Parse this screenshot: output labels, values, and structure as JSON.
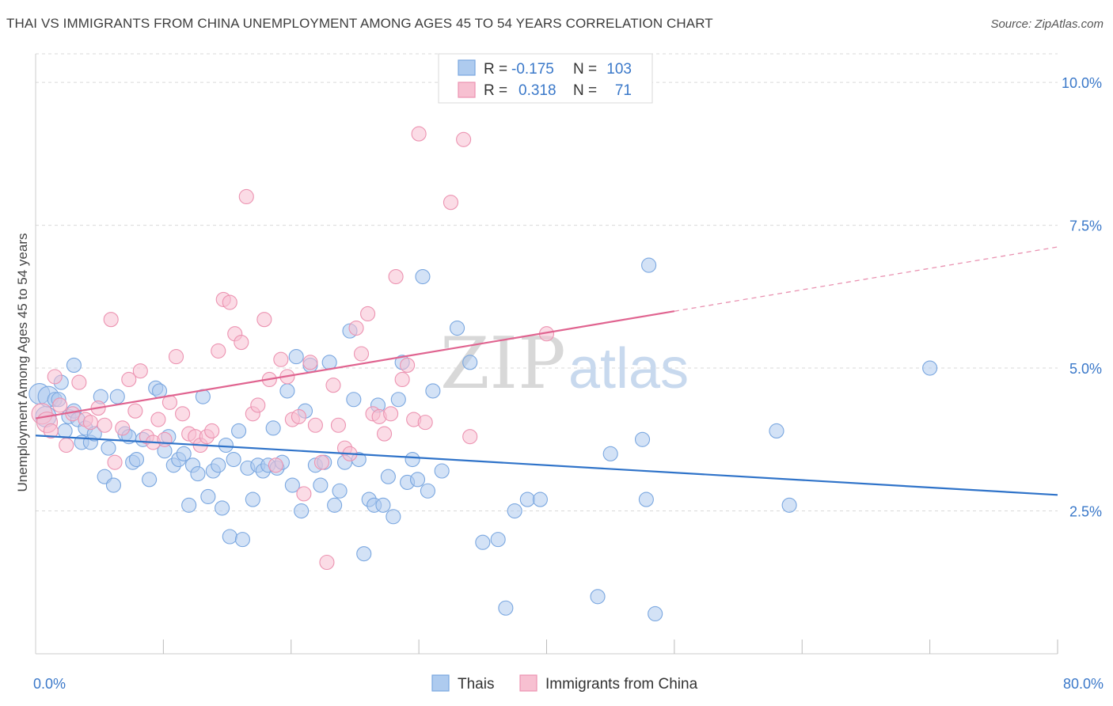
{
  "header": {
    "title": "THAI VS IMMIGRANTS FROM CHINA UNEMPLOYMENT AMONG AGES 45 TO 54 YEARS CORRELATION CHART",
    "source": "Source: ZipAtlas.com"
  },
  "watermark": {
    "zip": "ZIP",
    "atlas": "atlas"
  },
  "stats_legend": {
    "rows": [
      {
        "r_label": "R =",
        "r_value": "-0.175",
        "n_label": "N =",
        "n_value": "103",
        "color": "#7aaae8"
      },
      {
        "r_label": "R =",
        "r_value": "0.318",
        "n_label": "N =",
        "n_value": "71",
        "color": "#f09ab8"
      }
    ]
  },
  "colors": {
    "thais_fill": "#aecbef",
    "thais_stroke": "#7aa7e0",
    "thais_line": "#2f73c9",
    "china_fill": "#f7c0d1",
    "china_stroke": "#ec93b1",
    "china_line": "#e06490",
    "axis_label": "#3a78c9",
    "grid": "#d9d9d9"
  },
  "chart_data": {
    "type": "scatter",
    "title": "THAI VS IMMIGRANTS FROM CHINA UNEMPLOYMENT AMONG AGES 45 TO 54 YEARS CORRELATION CHART",
    "xlabel": "",
    "ylabel": "Unemployment Among Ages 45 to 54 years",
    "xlim": [
      0,
      80
    ],
    "ylim": [
      0,
      10.5
    ],
    "x_tick_labels": [
      "0.0%",
      "80.0%"
    ],
    "y_ticks": [
      2.5,
      5.0,
      7.5,
      10.0
    ],
    "y_tick_labels": [
      "2.5%",
      "5.0%",
      "7.5%",
      "10.0%"
    ],
    "grid": true,
    "legend_position": "bottom",
    "series": [
      {
        "name": "Thais",
        "trend": {
          "x": [
            0,
            80
          ],
          "y": [
            3.82,
            2.78
          ],
          "solid_until": 80
        },
        "points": [
          [
            0.3,
            4.55
          ],
          [
            0.8,
            4.15
          ],
          [
            1.0,
            4.5
          ],
          [
            1.5,
            4.45
          ],
          [
            1.8,
            4.45
          ],
          [
            2.0,
            4.75
          ],
          [
            2.3,
            3.9
          ],
          [
            2.6,
            4.15
          ],
          [
            3.0,
            4.25
          ],
          [
            3.0,
            5.05
          ],
          [
            3.3,
            4.1
          ],
          [
            3.6,
            3.7
          ],
          [
            3.9,
            3.95
          ],
          [
            4.3,
            3.7
          ],
          [
            4.6,
            3.85
          ],
          [
            5.1,
            4.5
          ],
          [
            5.4,
            3.1
          ],
          [
            5.7,
            3.6
          ],
          [
            6.1,
            2.95
          ],
          [
            6.4,
            4.5
          ],
          [
            7.0,
            3.85
          ],
          [
            7.3,
            3.8
          ],
          [
            7.6,
            3.35
          ],
          [
            7.9,
            3.4
          ],
          [
            8.4,
            3.75
          ],
          [
            8.9,
            3.05
          ],
          [
            9.4,
            4.65
          ],
          [
            9.7,
            4.6
          ],
          [
            10.1,
            3.55
          ],
          [
            10.4,
            3.8
          ],
          [
            10.8,
            3.3
          ],
          [
            11.2,
            3.4
          ],
          [
            11.6,
            3.5
          ],
          [
            12.0,
            2.6
          ],
          [
            12.3,
            3.3
          ],
          [
            12.7,
            3.15
          ],
          [
            13.1,
            4.5
          ],
          [
            13.5,
            2.75
          ],
          [
            13.9,
            3.2
          ],
          [
            14.3,
            3.3
          ],
          [
            14.6,
            2.55
          ],
          [
            14.9,
            3.65
          ],
          [
            15.2,
            2.05
          ],
          [
            15.5,
            3.4
          ],
          [
            15.9,
            3.9
          ],
          [
            16.2,
            2.0
          ],
          [
            16.6,
            3.25
          ],
          [
            17.0,
            2.7
          ],
          [
            17.4,
            3.3
          ],
          [
            17.8,
            3.2
          ],
          [
            18.2,
            3.3
          ],
          [
            18.6,
            3.95
          ],
          [
            18.9,
            3.25
          ],
          [
            19.3,
            3.35
          ],
          [
            19.7,
            4.6
          ],
          [
            20.1,
            2.95
          ],
          [
            20.4,
            5.2
          ],
          [
            20.8,
            2.5
          ],
          [
            21.1,
            4.25
          ],
          [
            21.5,
            5.05
          ],
          [
            21.9,
            3.3
          ],
          [
            22.3,
            2.95
          ],
          [
            22.6,
            3.35
          ],
          [
            23.0,
            5.1
          ],
          [
            23.4,
            2.6
          ],
          [
            23.8,
            2.85
          ],
          [
            24.2,
            3.35
          ],
          [
            24.6,
            5.65
          ],
          [
            24.9,
            4.45
          ],
          [
            25.3,
            3.4
          ],
          [
            25.7,
            1.75
          ],
          [
            26.1,
            2.7
          ],
          [
            26.5,
            2.6
          ],
          [
            26.8,
            4.35
          ],
          [
            27.2,
            2.6
          ],
          [
            27.6,
            3.1
          ],
          [
            28.0,
            2.4
          ],
          [
            28.4,
            4.45
          ],
          [
            28.7,
            5.1
          ],
          [
            29.1,
            3.0
          ],
          [
            29.5,
            3.4
          ],
          [
            29.9,
            3.05
          ],
          [
            30.3,
            6.6
          ],
          [
            30.7,
            2.85
          ],
          [
            31.1,
            4.6
          ],
          [
            31.8,
            3.2
          ],
          [
            33.0,
            5.7
          ],
          [
            34.0,
            5.1
          ],
          [
            35.0,
            1.95
          ],
          [
            36.2,
            2.0
          ],
          [
            36.8,
            0.8
          ],
          [
            37.5,
            2.5
          ],
          [
            38.5,
            2.7
          ],
          [
            39.5,
            2.7
          ],
          [
            44.0,
            1.0
          ],
          [
            45.0,
            3.5
          ],
          [
            47.5,
            3.75
          ],
          [
            47.8,
            2.7
          ],
          [
            48.0,
            6.8
          ],
          [
            48.5,
            0.7
          ],
          [
            58.0,
            3.9
          ],
          [
            59.0,
            2.6
          ],
          [
            70.0,
            5.0
          ]
        ]
      },
      {
        "name": "Immigrants from China",
        "trend": {
          "x": [
            0,
            80
          ],
          "y": [
            4.12,
            7.12
          ],
          "solid_until": 50
        },
        "points": [
          [
            0.5,
            4.2
          ],
          [
            0.9,
            4.05
          ],
          [
            1.2,
            3.9
          ],
          [
            1.5,
            4.85
          ],
          [
            1.9,
            4.35
          ],
          [
            2.4,
            3.65
          ],
          [
            2.9,
            4.2
          ],
          [
            3.4,
            4.75
          ],
          [
            3.9,
            4.1
          ],
          [
            4.3,
            4.05
          ],
          [
            4.9,
            4.3
          ],
          [
            5.4,
            4.0
          ],
          [
            5.9,
            5.85
          ],
          [
            6.2,
            3.35
          ],
          [
            6.8,
            3.95
          ],
          [
            7.3,
            4.8
          ],
          [
            7.8,
            4.25
          ],
          [
            8.2,
            4.95
          ],
          [
            8.7,
            3.8
          ],
          [
            9.2,
            3.7
          ],
          [
            9.6,
            4.1
          ],
          [
            10.1,
            3.75
          ],
          [
            10.5,
            4.4
          ],
          [
            11.0,
            5.2
          ],
          [
            11.5,
            4.2
          ],
          [
            12.0,
            3.85
          ],
          [
            12.5,
            3.8
          ],
          [
            12.9,
            3.65
          ],
          [
            13.4,
            3.8
          ],
          [
            13.8,
            3.9
          ],
          [
            14.3,
            5.3
          ],
          [
            14.7,
            6.2
          ],
          [
            15.2,
            6.15
          ],
          [
            15.6,
            5.6
          ],
          [
            16.1,
            5.45
          ],
          [
            16.5,
            8.0
          ],
          [
            17.0,
            4.2
          ],
          [
            17.4,
            4.35
          ],
          [
            17.9,
            5.85
          ],
          [
            18.3,
            4.8
          ],
          [
            18.8,
            3.3
          ],
          [
            19.2,
            5.15
          ],
          [
            19.7,
            4.85
          ],
          [
            20.1,
            4.1
          ],
          [
            20.6,
            4.15
          ],
          [
            21.0,
            2.8
          ],
          [
            21.5,
            5.1
          ],
          [
            21.9,
            4.0
          ],
          [
            22.4,
            3.35
          ],
          [
            22.8,
            1.6
          ],
          [
            23.3,
            4.7
          ],
          [
            23.7,
            4.0
          ],
          [
            24.2,
            3.6
          ],
          [
            24.6,
            3.5
          ],
          [
            25.1,
            5.7
          ],
          [
            25.5,
            5.25
          ],
          [
            26.0,
            5.95
          ],
          [
            26.4,
            4.2
          ],
          [
            26.9,
            4.15
          ],
          [
            27.3,
            3.85
          ],
          [
            27.8,
            4.2
          ],
          [
            28.2,
            6.6
          ],
          [
            28.7,
            4.8
          ],
          [
            29.1,
            5.05
          ],
          [
            29.6,
            4.1
          ],
          [
            30.0,
            9.1
          ],
          [
            30.5,
            4.05
          ],
          [
            32.5,
            7.9
          ],
          [
            33.5,
            9.0
          ],
          [
            34.0,
            3.8
          ],
          [
            40.0,
            5.6
          ]
        ]
      }
    ]
  },
  "bottom_legend": {
    "items": [
      {
        "label": "Thais"
      },
      {
        "label": "Immigrants from China"
      }
    ]
  }
}
